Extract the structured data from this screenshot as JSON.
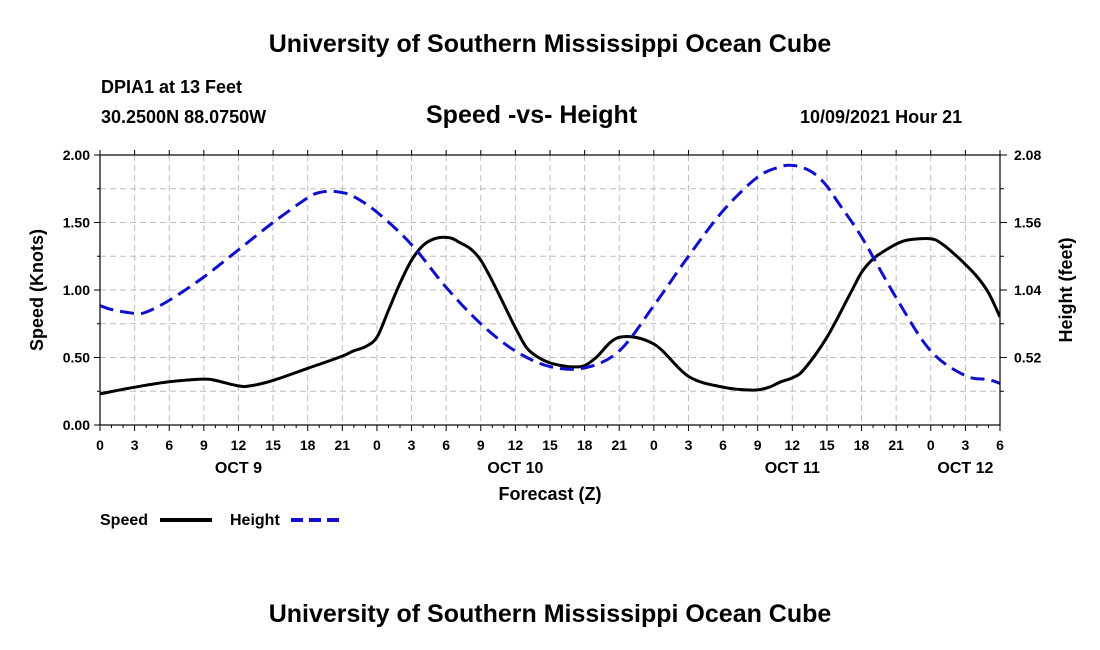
{
  "header": {
    "title": "University of Southern Mississippi Ocean Cube",
    "station": "DPIA1 at 13 Feet",
    "coords": "30.2500N  88.0750W",
    "subtitle": "Speed -vs- Height",
    "datetime": "10/09/2021 Hour 21"
  },
  "footer": {
    "title": "University of Southern Mississippi Ocean Cube"
  },
  "legend": {
    "speed_label": "Speed",
    "height_label": "Height"
  },
  "colors": {
    "speed": "#000000",
    "height": "#1010cc",
    "grid": "#bdbdbd"
  },
  "chart_data": {
    "type": "line",
    "title": "Speed -vs- Height",
    "xlabel": "Forecast (Z)",
    "ylabel": "Speed (Knots)",
    "ylabel_right": "Height (feet)",
    "xlim": [
      0,
      78
    ],
    "ylim": [
      0,
      2.0
    ],
    "ylim_right": [
      0.0,
      2.08
    ],
    "grid": true,
    "x_tick_values": [
      0,
      3,
      6,
      9,
      12,
      15,
      18,
      21,
      24,
      27,
      30,
      33,
      36,
      39,
      42,
      45,
      48,
      51,
      54,
      57,
      60,
      63,
      66,
      69,
      72,
      75,
      78
    ],
    "x_tick_labels": [
      "0",
      "3",
      "6",
      "9",
      "12",
      "15",
      "18",
      "21",
      "0",
      "3",
      "6",
      "9",
      "12",
      "15",
      "18",
      "21",
      "0",
      "3",
      "6",
      "9",
      "12",
      "15",
      "18",
      "21",
      "0",
      "3",
      "6"
    ],
    "day_labels": [
      {
        "x": 12,
        "label": "OCT 9"
      },
      {
        "x": 36,
        "label": "OCT 10"
      },
      {
        "x": 60,
        "label": "OCT 11"
      },
      {
        "x": 75,
        "label": "OCT 12"
      }
    ],
    "y_ticks": [
      {
        "v": 0,
        "label": "0.00"
      },
      {
        "v": 0.5,
        "label": "0.50"
      },
      {
        "v": 1.0,
        "label": "1.00"
      },
      {
        "v": 1.5,
        "label": "1.50"
      },
      {
        "v": 2.0,
        "label": "2.00"
      }
    ],
    "y_ticks_right": [
      {
        "v": 0.52,
        "label": "0.52"
      },
      {
        "v": 1.04,
        "label": "1.04"
      },
      {
        "v": 1.56,
        "label": "1.56"
      },
      {
        "v": 2.08,
        "label": "2.08"
      }
    ],
    "series": [
      {
        "name": "Speed",
        "axis": "left",
        "style": "solid",
        "x": [
          0,
          3,
          6,
          9,
          10,
          12,
          13,
          15,
          18,
          21,
          22,
          23,
          24,
          25,
          26,
          27,
          28,
          29,
          30,
          31,
          33,
          36,
          37,
          38,
          39,
          40,
          41,
          42,
          43,
          45,
          48,
          51,
          54,
          56,
          57,
          58,
          59,
          60,
          61,
          63,
          65,
          66,
          67,
          68,
          69,
          70,
          72,
          73,
          74,
          75,
          76,
          77,
          78
        ],
        "values": [
          0.23,
          0.28,
          0.32,
          0.34,
          0.33,
          0.29,
          0.29,
          0.33,
          0.42,
          0.51,
          0.55,
          0.58,
          0.65,
          0.85,
          1.05,
          1.22,
          1.33,
          1.38,
          1.39,
          1.36,
          1.22,
          0.72,
          0.57,
          0.5,
          0.46,
          0.44,
          0.43,
          0.44,
          0.5,
          0.65,
          0.6,
          0.36,
          0.28,
          0.26,
          0.26,
          0.28,
          0.32,
          0.35,
          0.41,
          0.65,
          0.97,
          1.13,
          1.23,
          1.29,
          1.34,
          1.37,
          1.38,
          1.34,
          1.27,
          1.19,
          1.1,
          0.98,
          0.8
        ]
      },
      {
        "name": "Height",
        "axis": "right",
        "style": "dashed",
        "x": [
          0,
          1,
          3,
          4,
          6,
          9,
          12,
          15,
          18,
          19,
          20,
          21,
          22,
          24,
          27,
          30,
          33,
          36,
          39,
          42,
          45,
          48,
          51,
          54,
          57,
          59,
          60,
          61,
          62,
          63,
          64,
          66,
          69,
          72,
          75,
          77,
          78
        ],
        "values": [
          0.92,
          0.89,
          0.86,
          0.87,
          0.96,
          1.14,
          1.35,
          1.56,
          1.75,
          1.79,
          1.8,
          1.79,
          1.76,
          1.64,
          1.39,
          1.06,
          0.78,
          0.57,
          0.45,
          0.44,
          0.57,
          0.92,
          1.3,
          1.65,
          1.91,
          1.99,
          2.0,
          1.98,
          1.93,
          1.84,
          1.71,
          1.45,
          0.98,
          0.57,
          0.38,
          0.35,
          0.32
        ]
      }
    ]
  }
}
